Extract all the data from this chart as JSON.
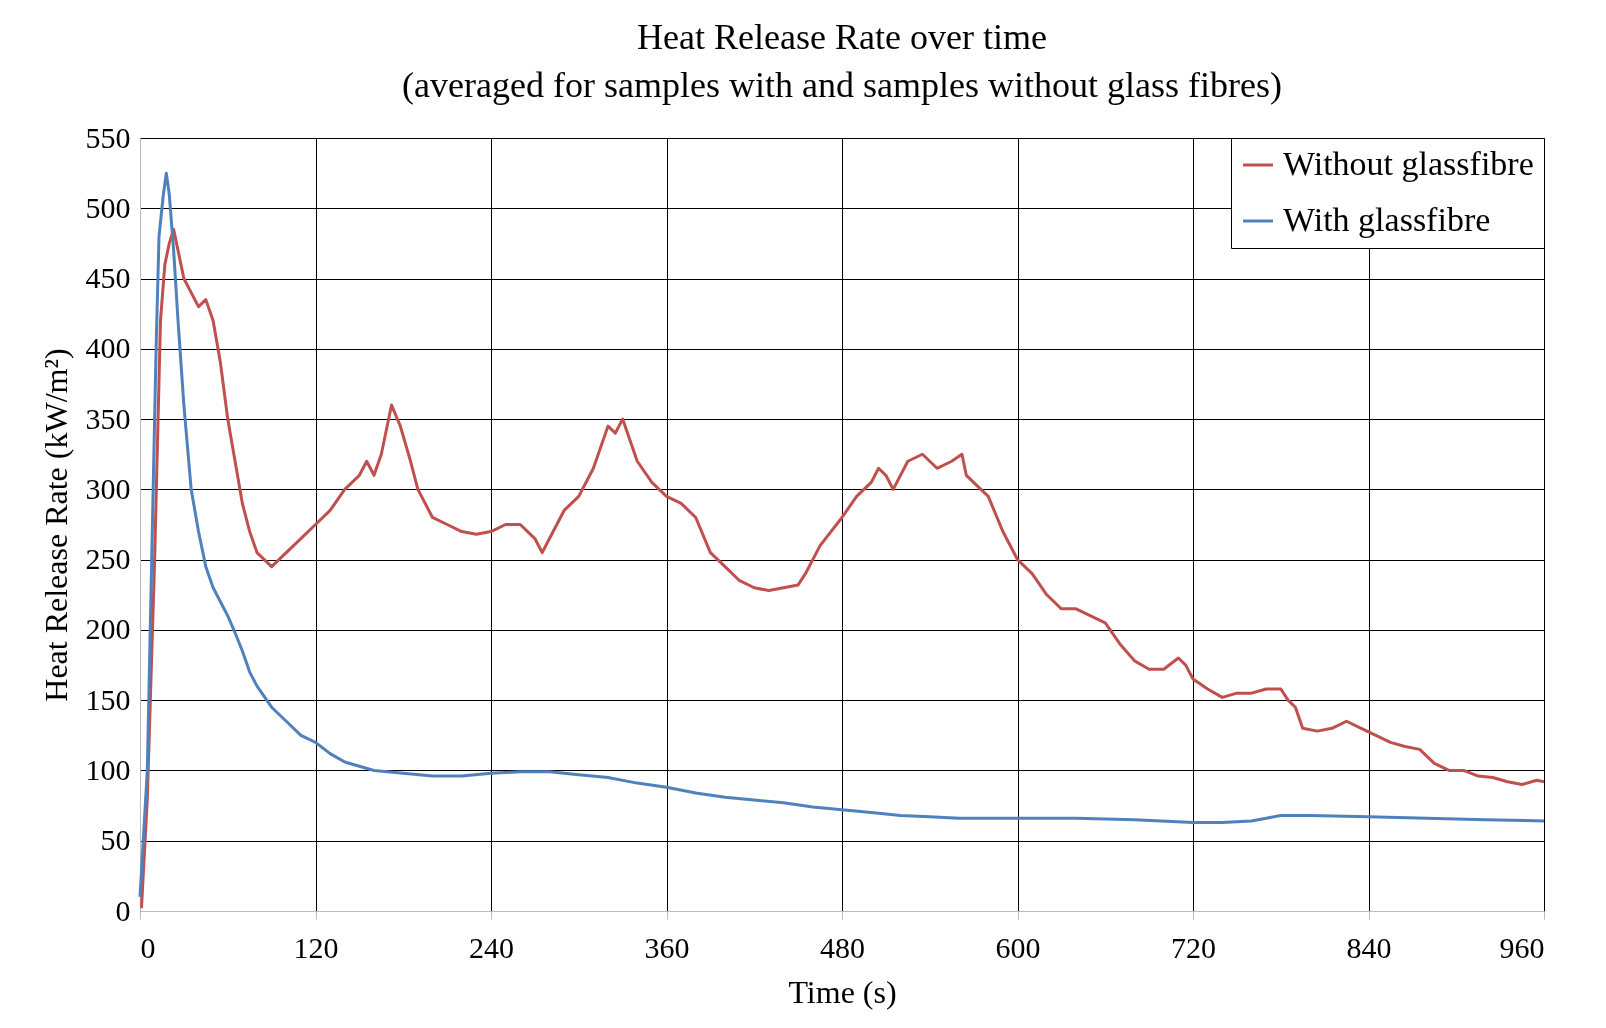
{
  "chart_data": {
    "type": "line",
    "title": "Heat Release Rate over time",
    "subtitle": "(averaged for samples with and samples without glass fibres)",
    "xlabel": "Time (s)",
    "ylabel": "Heat Release Rate (kW/m²)",
    "xlim": [
      0,
      960
    ],
    "xticks": [
      0,
      120,
      240,
      360,
      480,
      600,
      720,
      840,
      960
    ],
    "ylim": [
      0,
      550
    ],
    "yticks": [
      0,
      50,
      100,
      150,
      200,
      250,
      300,
      350,
      400,
      450,
      500,
      550
    ],
    "grid": true,
    "legend": "top right",
    "marker": "none",
    "line_style": "solid",
    "series": [
      {
        "name": "Without glassfibre",
        "color": "#c0504d",
        "x": [
          1,
          5,
          10,
          14,
          17,
          20,
          23,
          26,
          30,
          35,
          40,
          45,
          50,
          55,
          60,
          65,
          70,
          75,
          80,
          85,
          90,
          95,
          100,
          110,
          120,
          130,
          140,
          150,
          155,
          160,
          165,
          172,
          178,
          185,
          190,
          200,
          210,
          220,
          230,
          240,
          250,
          260,
          270,
          275,
          280,
          290,
          300,
          310,
          320,
          325,
          330,
          340,
          350,
          360,
          370,
          380,
          390,
          400,
          410,
          420,
          430,
          440,
          450,
          455,
          465,
          480,
          490,
          500,
          505,
          510,
          515,
          525,
          535,
          545,
          555,
          562,
          565,
          570,
          580,
          590,
          600,
          610,
          620,
          630,
          640,
          650,
          660,
          670,
          680,
          690,
          700,
          710,
          715,
          720,
          730,
          740,
          750,
          760,
          770,
          780,
          785,
          790,
          795,
          805,
          815,
          825,
          835,
          845,
          855,
          865,
          875,
          885,
          895,
          905,
          915,
          925,
          935,
          945,
          955,
          960
        ],
        "values": [
          2,
          80,
          250,
          420,
          460,
          475,
          485,
          470,
          450,
          440,
          430,
          435,
          420,
          390,
          350,
          320,
          290,
          270,
          255,
          250,
          245,
          250,
          255,
          265,
          275,
          285,
          300,
          310,
          320,
          310,
          325,
          360,
          345,
          320,
          300,
          280,
          275,
          270,
          268,
          270,
          275,
          275,
          265,
          255,
          265,
          285,
          295,
          315,
          345,
          340,
          350,
          320,
          305,
          295,
          290,
          280,
          255,
          245,
          235,
          230,
          228,
          230,
          232,
          240,
          260,
          280,
          295,
          305,
          315,
          310,
          300,
          320,
          325,
          315,
          320,
          325,
          310,
          305,
          295,
          270,
          250,
          240,
          225,
          215,
          215,
          210,
          205,
          190,
          178,
          172,
          172,
          180,
          175,
          165,
          158,
          152,
          155,
          155,
          158,
          158,
          150,
          145,
          130,
          128,
          130,
          135,
          130,
          125,
          120,
          117,
          115,
          105,
          100,
          100,
          96,
          95,
          92,
          90,
          93,
          92
        ]
      },
      {
        "name": "With glassfibre",
        "color": "#4f81bd",
        "x": [
          0,
          5,
          8,
          11,
          13,
          16,
          18,
          20,
          23,
          26,
          30,
          35,
          40,
          45,
          50,
          55,
          60,
          65,
          70,
          75,
          80,
          90,
          100,
          110,
          120,
          130,
          140,
          150,
          160,
          180,
          200,
          220,
          240,
          260,
          280,
          300,
          320,
          340,
          360,
          380,
          400,
          420,
          440,
          460,
          480,
          500,
          520,
          540,
          560,
          600,
          640,
          680,
          720,
          740,
          760,
          770,
          780,
          800,
          840,
          880,
          920,
          960
        ],
        "values": [
          10,
          100,
          250,
          400,
          480,
          510,
          525,
          510,
          470,
          420,
          360,
          300,
          270,
          245,
          230,
          220,
          210,
          198,
          185,
          170,
          160,
          145,
          135,
          125,
          120,
          112,
          106,
          103,
          100,
          98,
          96,
          96,
          98,
          99,
          99,
          97,
          95,
          91,
          88,
          84,
          81,
          79,
          77,
          74,
          72,
          70,
          68,
          67,
          66,
          66,
          66,
          65,
          63,
          63,
          64,
          66,
          68,
          68,
          67,
          66,
          65,
          64
        ]
      }
    ]
  }
}
